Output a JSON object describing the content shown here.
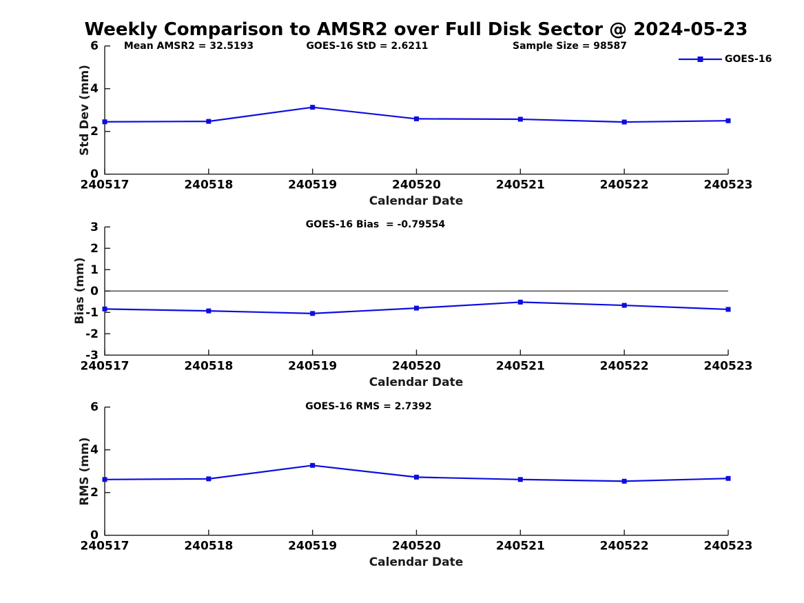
{
  "title": "Weekly Comparison to AMSR2 over Full Disk Sector @ 2024-05-23",
  "legend": {
    "label": "GOES-16",
    "position": "top-right"
  },
  "colors": {
    "line": "#0d0de0",
    "marker": "#0d0de0",
    "zero_line": "#595959",
    "axis": "#1a1a1a",
    "text": "#000000",
    "background": "#ffffff"
  },
  "chart_data": [
    {
      "type": "line",
      "title": "",
      "ylabel": "Std Dev (mm)",
      "xlabel": "Calendar Date",
      "categories": [
        "240517",
        "240518",
        "240519",
        "240520",
        "240521",
        "240522",
        "240523"
      ],
      "series": [
        {
          "name": "GOES-16",
          "values": [
            2.45,
            2.47,
            3.13,
            2.59,
            2.57,
            2.44,
            2.5
          ]
        }
      ],
      "ylim": [
        0,
        6
      ],
      "yticks": [
        0,
        2,
        4,
        6
      ],
      "grid": false,
      "zero_line": false,
      "legend_entries": [
        "GOES-16"
      ],
      "annotations": [
        {
          "text": "Mean AMSR2 = 32.5193"
        },
        {
          "text": "GOES-16 StD = 2.6211"
        },
        {
          "text": "Sample Size = 98587"
        }
      ]
    },
    {
      "type": "line",
      "title": "",
      "ylabel": "Bias (mm)",
      "xlabel": "Calendar Date",
      "categories": [
        "240517",
        "240518",
        "240519",
        "240520",
        "240521",
        "240522",
        "240523"
      ],
      "series": [
        {
          "name": "GOES-16",
          "values": [
            -0.84,
            -0.93,
            -1.05,
            -0.8,
            -0.52,
            -0.67,
            -0.86
          ]
        }
      ],
      "ylim": [
        -3,
        3
      ],
      "yticks": [
        -3,
        -2,
        -1,
        0,
        1,
        2,
        3
      ],
      "grid": false,
      "zero_line": true,
      "annotations": [
        {
          "text": "GOES-16 Bias  = -0.79554"
        }
      ]
    },
    {
      "type": "line",
      "title": "",
      "ylabel": "RMS (mm)",
      "xlabel": "Calendar Date",
      "categories": [
        "240517",
        "240518",
        "240519",
        "240520",
        "240521",
        "240522",
        "240523"
      ],
      "series": [
        {
          "name": "GOES-16",
          "values": [
            2.61,
            2.64,
            3.27,
            2.72,
            2.61,
            2.53,
            2.66
          ]
        }
      ],
      "ylim": [
        0,
        6
      ],
      "yticks": [
        0,
        2,
        4,
        6
      ],
      "grid": false,
      "zero_line": false,
      "annotations": [
        {
          "text": "GOES-16 RMS = 2.7392"
        }
      ]
    }
  ]
}
